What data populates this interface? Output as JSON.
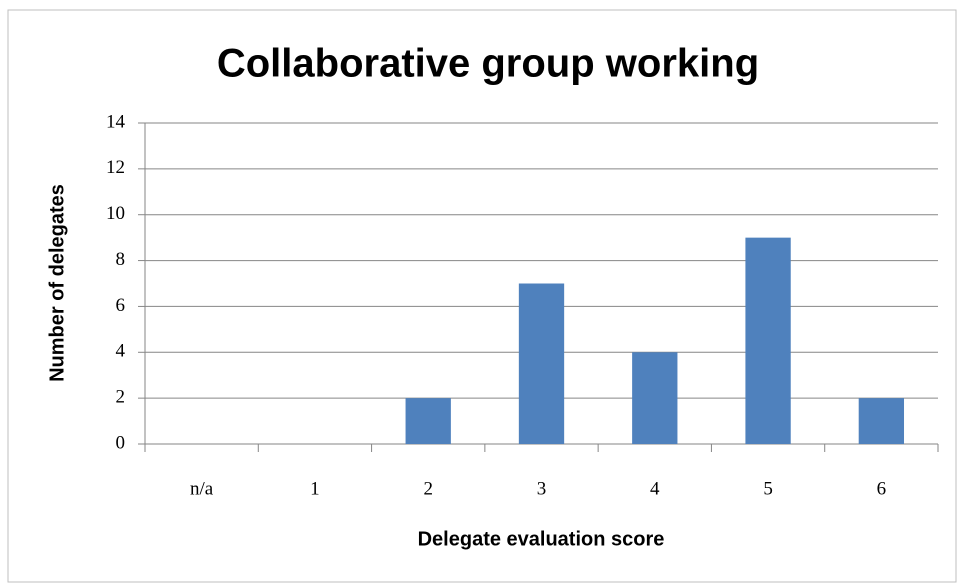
{
  "chart_data": {
    "type": "bar",
    "title": "Collaborative group working",
    "x_label": "Delegate evaluation score",
    "y_label": "Number of delegates",
    "categories": [
      "n/a",
      "1",
      "2",
      "3",
      "4",
      "5",
      "6"
    ],
    "values": [
      0,
      0,
      2,
      7,
      4,
      9,
      2
    ],
    "color": "#4f81bd",
    "ylim": [
      0,
      14
    ],
    "yticks": [
      0,
      2,
      4,
      6,
      8,
      10,
      12,
      14
    ],
    "grid": true
  }
}
